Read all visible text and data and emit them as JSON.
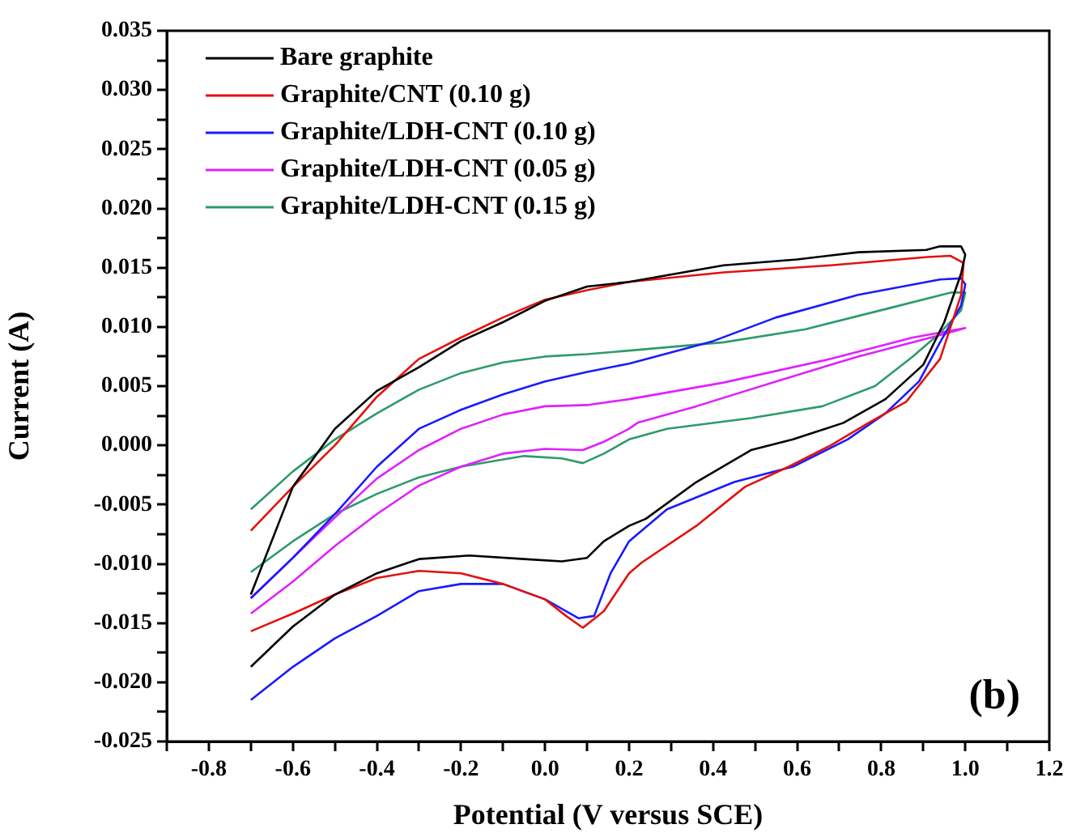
{
  "chart_data": {
    "type": "line",
    "xlabel": "Potential (V versus SCE)",
    "ylabel": "Current (A)",
    "annotations": [
      "(b)"
    ],
    "xlim": [
      -0.9,
      1.2
    ],
    "xticks": [
      {
        "value": -0.9,
        "label": null
      },
      {
        "value": -0.8,
        "label": "-0.8"
      },
      {
        "value": -0.7,
        "label": null
      },
      {
        "value": -0.6,
        "label": "-0.6"
      },
      {
        "value": -0.5,
        "label": null
      },
      {
        "value": -0.4,
        "label": "-0.4"
      },
      {
        "value": -0.3,
        "label": null
      },
      {
        "value": -0.2,
        "label": "-0.2"
      },
      {
        "value": -0.1,
        "label": null
      },
      {
        "value": 0,
        "label": "0.0"
      },
      {
        "value": 0.1,
        "label": null
      },
      {
        "value": 0.2,
        "label": "0.2"
      },
      {
        "value": 0.3,
        "label": null
      },
      {
        "value": 0.4,
        "label": "0.4"
      },
      {
        "value": 0.5,
        "label": null
      },
      {
        "value": 0.6,
        "label": "0.6"
      },
      {
        "value": 0.7,
        "label": null
      },
      {
        "value": 0.8,
        "label": "0.8"
      },
      {
        "value": 0.9,
        "label": null
      },
      {
        "value": 1,
        "label": "1.0"
      },
      {
        "value": 1.1,
        "label": null
      },
      {
        "value": 1.2,
        "label": "1.2"
      }
    ],
    "ylim": [
      -0.025,
      0.035
    ],
    "yticks": [
      {
        "value": -0.025,
        "label": "-0.025"
      },
      {
        "value": -0.0225,
        "label": null
      },
      {
        "value": -0.02,
        "label": "-0.020"
      },
      {
        "value": -0.0175,
        "label": null
      },
      {
        "value": -0.015,
        "label": "-0.015"
      },
      {
        "value": -0.0125,
        "label": null
      },
      {
        "value": -0.01,
        "label": "-0.010"
      },
      {
        "value": -0.0075,
        "label": null
      },
      {
        "value": -0.005,
        "label": "-0.005"
      },
      {
        "value": -0.0025,
        "label": null
      },
      {
        "value": 0,
        "label": "0.000"
      },
      {
        "value": 0.0025,
        "label": null
      },
      {
        "value": 0.005,
        "label": "0.005"
      },
      {
        "value": 0.0075,
        "label": null
      },
      {
        "value": 0.01,
        "label": "0.010"
      },
      {
        "value": 0.0125,
        "label": null
      },
      {
        "value": 0.015,
        "label": "0.015"
      },
      {
        "value": 0.0175,
        "label": null
      },
      {
        "value": 0.02,
        "label": "0.020"
      },
      {
        "value": 0.0225,
        "label": null
      },
      {
        "value": 0.025,
        "label": "0.025"
      },
      {
        "value": 0.0275,
        "label": null
      },
      {
        "value": 0.03,
        "label": "0.030"
      },
      {
        "value": 0.0325,
        "label": null
      },
      {
        "value": 0.035,
        "label": "0.035"
      }
    ],
    "legend": "top left",
    "marker": "none",
    "line_style": "solid",
    "series": [
      {
        "name": "Bare graphite",
        "color": "#000000",
        "x": [
          -0.7,
          -0.6,
          -0.5,
          -0.4,
          -0.3,
          -0.2,
          -0.1,
          0,
          0.1,
          0.2,
          0.425,
          0.6,
          0.745,
          0.907,
          0.94,
          0.99,
          1,
          0.99,
          0.95,
          0.9,
          0.81,
          0.71,
          0.59,
          0.49,
          0.36,
          0.24,
          0.2,
          0.14,
          0.1,
          0.04,
          -0.05,
          -0.18,
          -0.3,
          -0.4,
          -0.5,
          -0.6,
          -0.7
        ],
        "values": [
          -0.0126,
          -0.0035,
          0.0014,
          0.0046,
          0.0066,
          0.0088,
          0.0104,
          0.0122,
          0.0134,
          0.0138,
          0.0152,
          0.0157,
          0.0163,
          0.0165,
          0.0168,
          0.0168,
          0.0161,
          0.0145,
          0.0104,
          0.0068,
          0.0039,
          0.0019,
          0.0005,
          -0.0004,
          -0.0031,
          -0.0062,
          -0.0068,
          -0.0081,
          -0.0095,
          -0.0098,
          -0.0096,
          -0.0093,
          -0.0096,
          -0.0108,
          -0.0126,
          -0.0153,
          -0.0187
        ]
      },
      {
        "name": "Graphite/CNT (0.10 g)",
        "color": "#e3120c",
        "x": [
          -0.7,
          -0.6,
          -0.5,
          -0.4,
          -0.3,
          -0.2,
          -0.1,
          0,
          0.1,
          0.2,
          0.425,
          0.68,
          0.91,
          0.965,
          0.996,
          0.99,
          0.94,
          0.86,
          0.77,
          0.68,
          0.58,
          0.476,
          0.36,
          0.23,
          0.2,
          0.14,
          0.09,
          0.05,
          0,
          -0.1,
          -0.2,
          -0.3,
          -0.4,
          -0.5,
          -0.6,
          -0.7
        ],
        "values": [
          -0.0072,
          -0.0035,
          0,
          0.0041,
          0.0073,
          0.0091,
          0.0108,
          0.0123,
          0.0131,
          0.0138,
          0.0146,
          0.0152,
          0.0159,
          0.016,
          0.0154,
          0.0127,
          0.0073,
          0.0037,
          0.0019,
          0,
          -0.0018,
          -0.0035,
          -0.0068,
          -0.0099,
          -0.0108,
          -0.014,
          -0.0154,
          -0.0144,
          -0.013,
          -0.0117,
          -0.0108,
          -0.0106,
          -0.0112,
          -0.0126,
          -0.0142,
          -0.0157
        ]
      },
      {
        "name": "Graphite/LDH-CNT (0.10 g)",
        "color": "#1a1aff",
        "x": [
          -0.7,
          -0.6,
          -0.5,
          -0.4,
          -0.3,
          -0.2,
          -0.1,
          0,
          0.1,
          0.2,
          0.4,
          0.55,
          0.745,
          0.94,
          0.99,
          1,
          0.99,
          0.94,
          0.89,
          0.81,
          0.72,
          0.59,
          0.45,
          0.29,
          0.2,
          0.156,
          0.117,
          0.08,
          0,
          -0.1,
          -0.2,
          -0.3,
          -0.4,
          -0.5,
          -0.6,
          -0.7
        ],
        "values": [
          -0.0129,
          -0.0095,
          -0.0058,
          -0.0018,
          0.0014,
          0.003,
          0.0043,
          0.0054,
          0.0062,
          0.0069,
          0.0088,
          0.0108,
          0.0127,
          0.014,
          0.0141,
          0.0136,
          0.0118,
          0.0087,
          0.0054,
          0.0027,
          0.0005,
          -0.0018,
          -0.0031,
          -0.0054,
          -0.0081,
          -0.0108,
          -0.0144,
          -0.0146,
          -0.013,
          -0.0117,
          -0.0117,
          -0.0123,
          -0.0144,
          -0.0163,
          -0.0187,
          -0.0215
        ]
      },
      {
        "name": "Graphite/LDH-CNT (0.05 g)",
        "color": "#e020ff",
        "x": [
          -0.7,
          -0.6,
          -0.5,
          -0.4,
          -0.3,
          -0.2,
          -0.1,
          0,
          0.1,
          0.2,
          0.425,
          0.68,
          0.875,
          1,
          0.94,
          0.745,
          0.55,
          0.36,
          0.22,
          0.2,
          0.14,
          0.09,
          0,
          -0.1,
          -0.2,
          -0.3,
          -0.4,
          -0.5,
          -0.6,
          -0.7
        ],
        "values": [
          -0.0129,
          -0.0095,
          -0.0061,
          -0.0028,
          -0.0004,
          0.0014,
          0.0026,
          0.0033,
          0.0034,
          0.0039,
          0.0053,
          0.0073,
          0.0091,
          0.0099,
          0.0093,
          0.0075,
          0.0054,
          0.0033,
          0.0019,
          0.0014,
          0.0003,
          -0.0004,
          -0.0003,
          -0.0007,
          -0.0018,
          -0.0034,
          -0.0058,
          -0.0085,
          -0.0115,
          -0.0142
        ]
      },
      {
        "name": "Graphite/LDH-CNT (0.15 g)",
        "color": "#2e9a6a",
        "x": [
          -0.7,
          -0.6,
          -0.5,
          -0.4,
          -0.3,
          -0.2,
          -0.1,
          0,
          0.1,
          0.2,
          0.425,
          0.62,
          0.81,
          0.965,
          1,
          0.99,
          0.94,
          0.875,
          0.785,
          0.66,
          0.49,
          0.29,
          0.2,
          0.14,
          0.09,
          0.04,
          -0.05,
          -0.2,
          -0.3,
          -0.4,
          -0.5,
          -0.6,
          -0.7
        ],
        "values": [
          -0.0054,
          -0.0022,
          0.0005,
          0.0027,
          0.0047,
          0.0061,
          0.007,
          0.0075,
          0.0077,
          0.008,
          0.0087,
          0.0098,
          0.0115,
          0.0129,
          0.0129,
          0.0114,
          0.0095,
          0.0075,
          0.005,
          0.0033,
          0.0023,
          0.0014,
          0.0005,
          -0.0007,
          -0.0015,
          -0.0011,
          -0.0009,
          -0.0018,
          -0.0027,
          -0.0041,
          -0.0058,
          -0.0081,
          -0.0107
        ]
      }
    ]
  }
}
